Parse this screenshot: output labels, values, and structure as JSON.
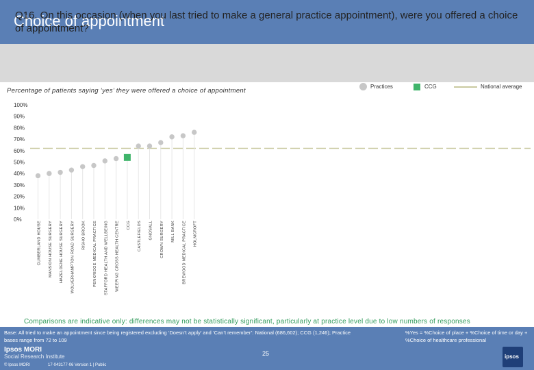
{
  "header": {
    "title": "Choice of appointment",
    "question": "Q16. On this occasion (when you last tried to make a general practice appointment), were you offered a choice of appointment?"
  },
  "subtitle": "Percentage of patients saying ‘yes’ they were offered a choice of appointment",
  "legend": {
    "practices": "Practices",
    "ccg": "CCG",
    "national": "National average"
  },
  "caveat": "Comparisons are indicative only: differences may not be statistically significant, particularly at practice level due to low numbers of responses",
  "footer": {
    "base": "Base: All tried to make an appointment since being registered excluding ‘Doesn’t apply’ and ‘Can’t remember’: National (686,602); CCG (1,246); Practice bases range from 72 to 109",
    "note": "%Yes = %Choice of place + %Choice of time or day + %Choice of healthcare professional",
    "logo_line1": "Ipsos MORI",
    "logo_line2": "Social Research Institute",
    "page": "25",
    "copyright": "© Ipsos MORI",
    "job": "17-043177-06 Version 1 | Public",
    "ipsos_logo_text": "ipsos"
  },
  "colors": {
    "header": "#5a7fb5",
    "question_band": "#d9d9d9",
    "practice": "#c7c7c7",
    "ccg": "#3fb46a",
    "national": "#c9c9a0",
    "caveat": "#2f9a5a"
  },
  "chart_data": {
    "type": "scatter",
    "y_ticks": [
      "0%",
      "10%",
      "20%",
      "30%",
      "40%",
      "50%",
      "60%",
      "70%",
      "80%",
      "90%",
      "100%"
    ],
    "ylim": [
      0,
      100
    ],
    "national_average": 62,
    "grid": false,
    "categories": [
      "CUMBERLAND HOUSE",
      "MANSION HOUSE SURGERY",
      "HAZELDENE HOUSE SURGERY",
      "WOLVERHAMPTON ROAD SURGERY",
      "RISHO BROOK",
      "PENKRIDGE MEDICAL PRACTICE",
      "STAFFORD HEALTH AND WELLBEING",
      "WEEPING CROSS HEALTH CENTRE",
      "CCG",
      "CASTLEFIELDS",
      "GNOSALL",
      "CROWN SURGERY",
      "MILL BANK",
      "BREWOOD MEDICAL PRACTICE",
      "HOLMCROFT"
    ],
    "values": [
      38,
      40,
      41,
      43,
      46,
      47,
      51,
      53,
      54,
      64,
      64,
      67,
      72,
      73,
      76
    ],
    "ccg_index": 8
  }
}
